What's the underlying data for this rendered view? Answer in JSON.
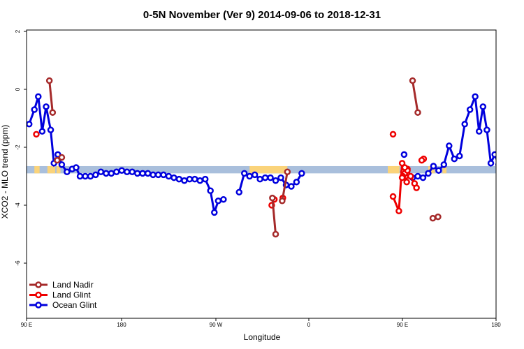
{
  "chart_data": {
    "type": "line",
    "title": "0-5N November (Ver 9)   2014-09-06 to 2018-12-31",
    "xlabel": "Longitude",
    "ylabel": "XCO2 - MLO trend (ppm)",
    "xlim": [
      90,
      450
    ],
    "ylim": [
      -7.8,
      2.0
    ],
    "x_ticks": [
      {
        "value": 90,
        "label": "90 E"
      },
      {
        "value": 180,
        "label": "180"
      },
      {
        "value": 270,
        "label": "90 W"
      },
      {
        "value": 360,
        "label": "0"
      },
      {
        "value": 450,
        "label": "90 E"
      }
    ],
    "x_ticks_extra": [
      {
        "value": 450,
        "label": "180"
      }
    ],
    "y_ticks": [
      {
        "value": 2,
        "label": "2"
      },
      {
        "value": 0,
        "label": "0"
      },
      {
        "value": -2,
        "label": "-2"
      },
      {
        "value": -4,
        "label": "-4"
      },
      {
        "value": -6,
        "label": "-6"
      }
    ],
    "band": {
      "y_top": -2.65,
      "y_bottom": -2.9,
      "ocean_color": "#a9bfdc",
      "land_color": "#fad37a",
      "land_segments": [
        [
          96,
          100
        ],
        [
          106,
          112
        ],
        [
          113,
          116
        ],
        [
          261,
          290
        ],
        [
          367,
          376
        ],
        [
          398,
          403
        ],
        [
          409,
          412
        ]
      ]
    },
    "legend_position": "bottom-left",
    "series": [
      {
        "name": "Land Nadir",
        "color": "#a52a2a",
        "segments": [
          [
            [
              107.5,
              0.3
            ],
            [
              110.0,
              -0.8
            ]
          ],
          [
            [
              113.5,
              -2.45
            ],
            [
              117.0,
              -2.35
            ]
          ],
          [
            [
              278.5,
              -3.75
            ],
            [
              281.0,
              -5.0
            ]
          ],
          [
            [
              286.0,
              -3.85
            ],
            [
              290.0,
              -2.85
            ]
          ],
          [
            [
              401.5,
              -4.45
            ],
            [
              405.5,
              -4.4
            ]
          ],
          [
            [
              386.0,
              0.3
            ],
            [
              390.0,
              -0.8
            ]
          ]
        ]
      },
      {
        "name": "Land Glint",
        "color": "#ee0000",
        "segments": [
          [
            [
              97.5,
              -1.55
            ]
          ],
          [
            [
              278.0,
              -4.0
            ],
            [
              280.0,
              -3.8
            ]
          ],
          [
            [
              286.5,
              -3.75
            ]
          ],
          [
            [
              371.0,
              -3.7
            ],
            [
              375.5,
              -4.2
            ],
            [
              378.0,
              -2.55
            ],
            [
              379.0,
              -2.85
            ],
            [
              380.5,
              -3.0
            ],
            [
              382.0,
              -2.75
            ],
            [
              384.5,
              -3.0
            ],
            [
              387.5,
              -3.25
            ],
            [
              389.0,
              -3.4
            ]
          ],
          [
            [
              380.0,
              -2.9
            ],
            [
              382.0,
              -2.8
            ]
          ],
          [
            [
              381.5,
              -3.2
            ]
          ],
          [
            [
              380.0,
              -2.7
            ]
          ],
          [
            [
              378.5,
              -3.0
            ]
          ],
          [
            [
              378.0,
              -3.05
            ]
          ],
          [
            [
              371.0,
              -1.55
            ]
          ],
          [
            [
              394.5,
              -2.4
            ],
            [
              393.0,
              -2.45
            ]
          ]
        ]
      },
      {
        "name": "Ocean Glint",
        "color": "#0000dd",
        "segments": [
          [
            [
              92.0,
              -1.2
            ],
            [
              96.0,
              -0.7
            ],
            [
              99.0,
              -0.25
            ],
            [
              102.0,
              -1.45
            ],
            [
              105.0,
              -0.6
            ],
            [
              108.5,
              -1.4
            ],
            [
              111.0,
              -2.55
            ],
            [
              114.0,
              -2.25
            ],
            [
              117.0,
              -2.6
            ],
            [
              121.0,
              -2.85
            ],
            [
              125.0,
              -2.75
            ],
            [
              128.0,
              -2.7
            ],
            [
              131.0,
              -3.0
            ],
            [
              135.0,
              -3.0
            ],
            [
              139.0,
              -3.0
            ],
            [
              143.0,
              -2.95
            ],
            [
              147.0,
              -2.85
            ],
            [
              151.0,
              -2.9
            ],
            [
              155.0,
              -2.9
            ],
            [
              159.0,
              -2.85
            ],
            [
              163.0,
              -2.8
            ],
            [
              167.0,
              -2.85
            ],
            [
              171.0,
              -2.85
            ],
            [
              175.0,
              -2.9
            ],
            [
              179.0,
              -2.9
            ],
            [
              183.0,
              -2.9
            ],
            [
              187.0,
              -2.95
            ],
            [
              191.0,
              -2.95
            ],
            [
              195.0,
              -2.95
            ],
            [
              199.0,
              -3.0
            ],
            [
              203.0,
              -3.05
            ],
            [
              207.0,
              -3.1
            ],
            [
              211.0,
              -3.15
            ],
            [
              215.0,
              -3.1
            ],
            [
              219.0,
              -3.1
            ],
            [
              223.0,
              -3.15
            ],
            [
              227.0,
              -3.1
            ],
            [
              231.0,
              -3.5
            ],
            [
              234.0,
              -4.25
            ],
            [
              237.0,
              -3.85
            ],
            [
              241.0,
              -3.8
            ]
          ],
          [
            [
              253.0,
              -3.55
            ],
            [
              257.0,
              -2.9
            ],
            [
              261.0,
              -3.0
            ],
            [
              265.0,
              -2.95
            ],
            [
              269.0,
              -3.1
            ],
            [
              273.0,
              -3.05
            ],
            [
              277.0,
              -3.05
            ],
            [
              281.0,
              -3.15
            ],
            [
              285.0,
              -3.05
            ],
            [
              289.0,
              -3.3
            ],
            [
              293.0,
              -3.35
            ],
            [
              297.0,
              -3.2
            ],
            [
              301.0,
              -2.9
            ]
          ],
          [
            [
              379.5,
              -2.25
            ]
          ],
          [
            [
              386.0,
              -3.05
            ],
            [
              390.0,
              -3.0
            ],
            [
              394.0,
              -3.05
            ],
            [
              398.0,
              -2.9
            ],
            [
              402.0,
              -2.65
            ],
            [
              406.0,
              -2.8
            ],
            [
              410.0,
              -2.6
            ],
            [
              414.0,
              -1.95
            ],
            [
              418.0,
              -2.4
            ],
            [
              422.0,
              -2.3
            ],
            [
              426.0,
              -1.2
            ],
            [
              430.0,
              -0.7
            ],
            [
              434.0,
              -0.25
            ],
            [
              437.0,
              -1.45
            ],
            [
              440.0,
              -0.6
            ],
            [
              443.0,
              -1.4
            ],
            [
              446.0,
              -2.55
            ],
            [
              449.0,
              -2.25
            ],
            [
              452.0,
              -2.6
            ],
            [
              456.0,
              -2.85
            ],
            [
              460.0,
              -2.75
            ],
            [
              464.0,
              -2.7
            ],
            [
              468.0,
              -3.0
            ],
            [
              472.0,
              -3.0
            ],
            [
              476.0,
              -3.0
            ],
            [
              480.0,
              -2.95
            ],
            [
              484.0,
              -2.85
            ],
            [
              488.0,
              -2.9
            ]
          ]
        ]
      }
    ]
  }
}
